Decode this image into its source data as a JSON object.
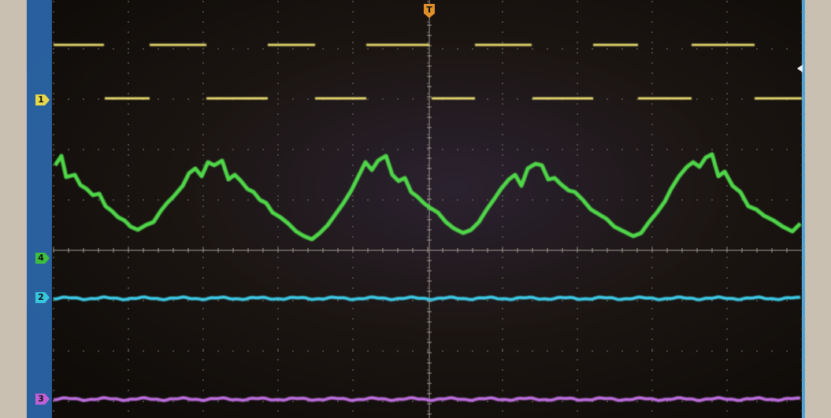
{
  "trigger_marker": "T",
  "channel_markers": [
    {
      "label": "1",
      "color": "#e6d84a"
    },
    {
      "label": "4",
      "color": "#3fbf3f"
    },
    {
      "label": "2",
      "color": "#36c6e0"
    },
    {
      "label": "3",
      "color": "#c060d8"
    }
  ]
}
